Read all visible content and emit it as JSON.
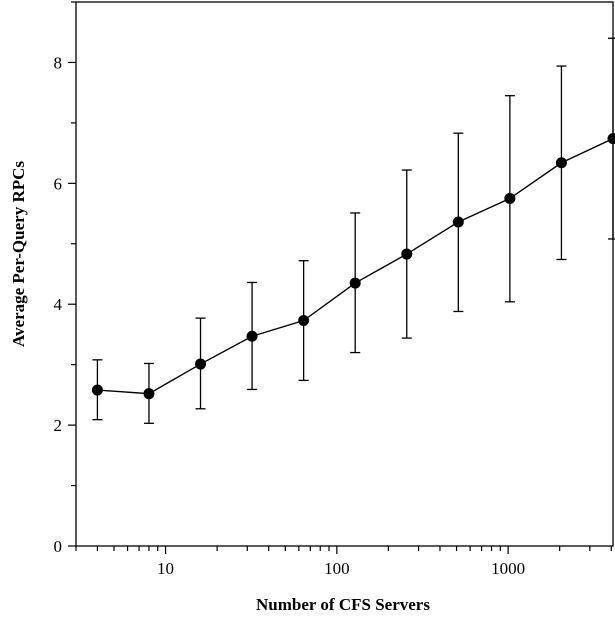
{
  "chart_data": {
    "type": "line",
    "title": "",
    "xlabel": "Number of CFS Servers",
    "ylabel": "Average Per-Query RPCs",
    "xscale": "log",
    "xlim": [
      3,
      4096
    ],
    "ylim": [
      0,
      9
    ],
    "grid": false,
    "legend": "none",
    "x_ticks": [
      {
        "value": 10,
        "label": "10"
      },
      {
        "value": 100,
        "label": "100"
      },
      {
        "value": 1000,
        "label": "1000"
      }
    ],
    "y_ticks": [
      {
        "value": 0,
        "label": "0"
      },
      {
        "value": 2,
        "label": "2"
      },
      {
        "value": 4,
        "label": "4"
      },
      {
        "value": 6,
        "label": "6"
      },
      {
        "value": 8,
        "label": "8"
      }
    ],
    "series": [
      {
        "x": [
          4,
          8,
          16,
          32,
          64,
          128,
          256,
          512,
          1024,
          2048,
          4096
        ],
        "y": [
          2.58,
          2.52,
          3.01,
          3.47,
          3.73,
          4.35,
          4.83,
          5.36,
          5.75,
          6.34,
          6.74
        ],
        "y_low": [
          2.09,
          2.03,
          2.27,
          2.59,
          2.74,
          3.2,
          3.44,
          3.88,
          4.04,
          4.74,
          5.08
        ],
        "y_high": [
          3.08,
          3.02,
          3.77,
          4.36,
          4.72,
          5.51,
          6.22,
          6.83,
          7.45,
          7.94,
          8.4
        ],
        "color": "#000000",
        "marker": "circle"
      }
    ]
  }
}
